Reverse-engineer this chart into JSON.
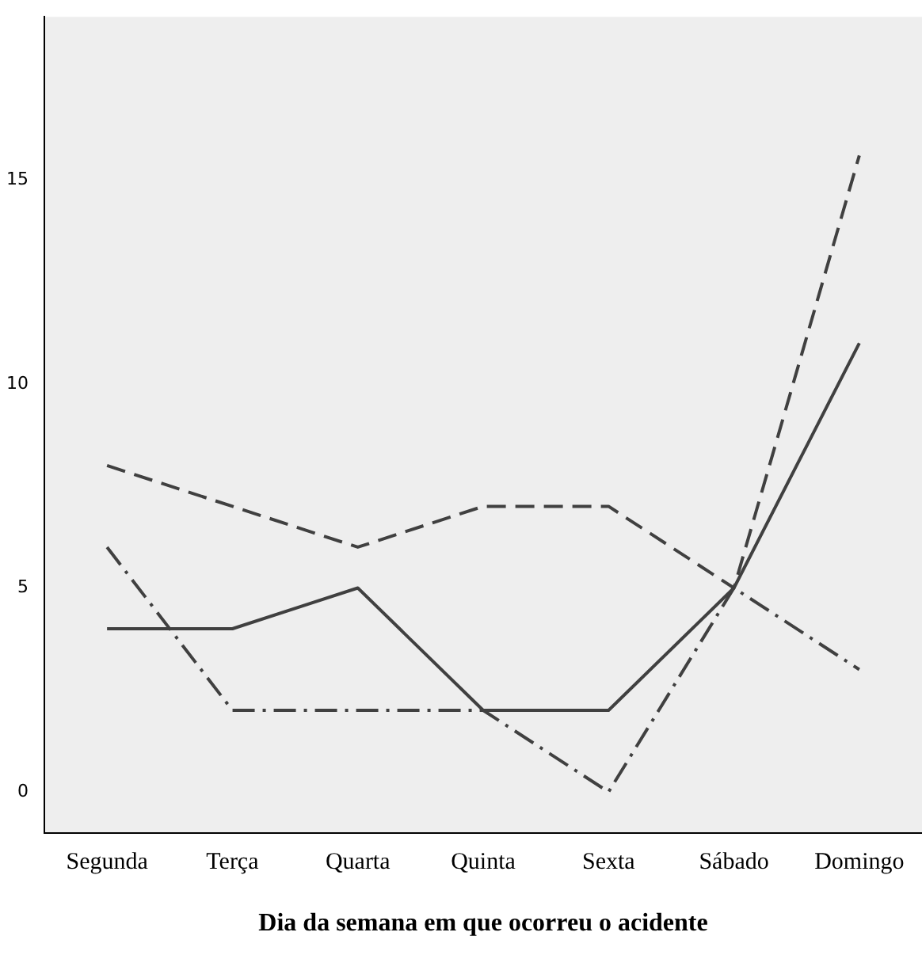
{
  "chart_data": {
    "type": "line",
    "xlabel": "Dia da semana em que ocorreu o acidente",
    "categories": [
      "Segunda",
      "Terça",
      "Quarta",
      "Quinta",
      "Sexta",
      "Sábado",
      "Domingo"
    ],
    "series": [
      {
        "color": "#404040",
        "line_style": "solid",
        "values": [
          4,
          4,
          5,
          2,
          2,
          5,
          11
        ]
      },
      {
        "color": "#404040",
        "line_style": "dashed",
        "values": [
          8,
          7,
          6,
          7,
          7,
          5,
          15.6
        ]
      },
      {
        "color": "#404040",
        "line_style": "dashdot",
        "values": [
          6,
          2,
          2,
          2,
          0,
          5,
          3
        ]
      }
    ],
    "ylim": [
      -1,
      19
    ],
    "yticks": [
      0,
      5,
      10,
      15
    ],
    "grid": false,
    "legend": false,
    "marker": "none"
  }
}
